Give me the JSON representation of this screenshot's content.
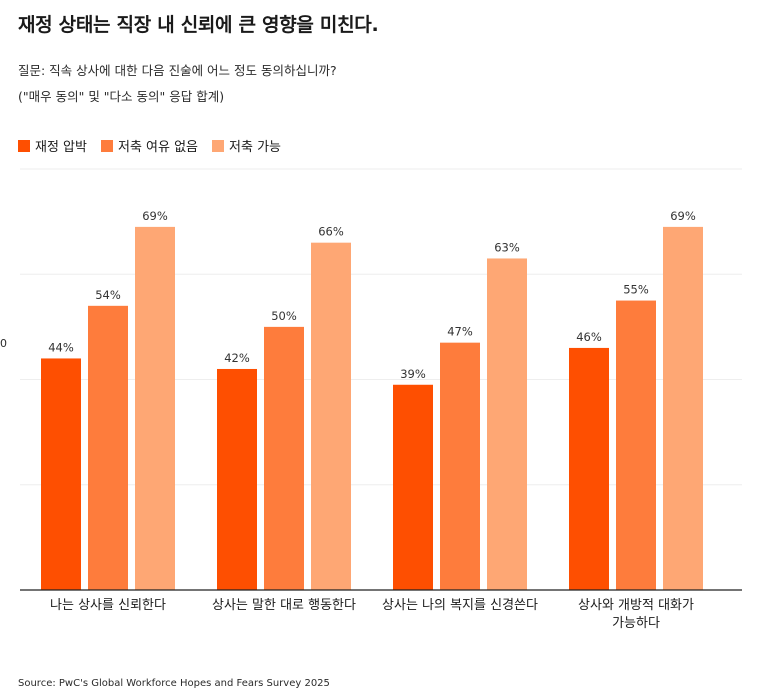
{
  "title": "재정 상태는 직장 내 신뢰에 큰 영향을 미친다.",
  "subtitle": "질문: 직속 상사에 대한 다음 진술에 어느 정도 동의하십니까?",
  "note": "(\"매우 동의\" 및 \"다소 동의\" 응답 합계)",
  "source": "Source: PwC's Global Workforce Hopes and Fears Survey 2025",
  "edge_mark": "0",
  "colors": {
    "series1": "#fe4f01",
    "series2": "#fe7c3c",
    "series3": "#fea774",
    "grid": "#eeeeee"
  },
  "legend": [
    {
      "label": "재정 압박"
    },
    {
      "label": "저축 여유 없음"
    },
    {
      "label": "저축 가능"
    }
  ],
  "chart_data": {
    "type": "bar",
    "title": "재정 상태는 직장 내 신뢰에 큰 영향을 미친다.",
    "xlabel": "",
    "ylabel": "",
    "ylim": [
      0,
      80
    ],
    "grid": true,
    "legend_position": "top-left",
    "categories": [
      [
        "나는 상사를 신뢰한다"
      ],
      [
        "상사는 말한 대로 행동한다"
      ],
      [
        "상사는 나의 복지를 신경쓴다"
      ],
      [
        "상사와 개방적 대화가",
        "가능하다"
      ]
    ],
    "series": [
      {
        "name": "재정 압박",
        "values": [
          44,
          42,
          39,
          46
        ]
      },
      {
        "name": "저축 여유 없음",
        "values": [
          54,
          50,
          47,
          55
        ]
      },
      {
        "name": "저축 가능",
        "values": [
          69,
          66,
          63,
          69
        ]
      }
    ],
    "value_suffix": "%"
  }
}
